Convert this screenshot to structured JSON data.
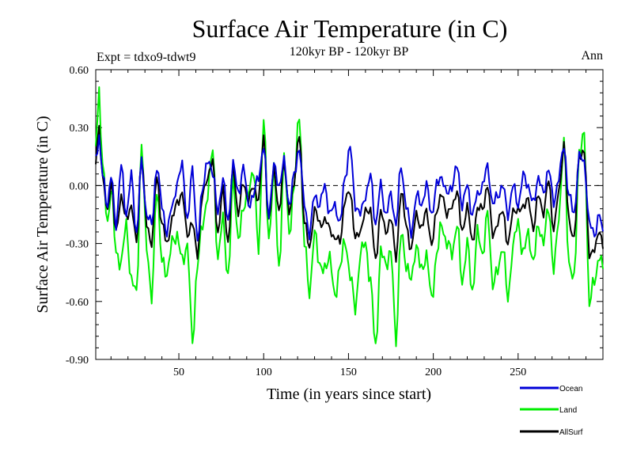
{
  "chart_data": {
    "type": "line",
    "title": "Surface Air Temperature (in C)",
    "subtitle": "120kyr BP - 120kyr BP",
    "experiment": "Expt = tdxo9-tdwt9",
    "season": "Ann",
    "xlabel": "Time (in years since start)",
    "ylabel": "Surface Air Temperature (in C)",
    "xlim": [
      1,
      300
    ],
    "ylim": [
      -0.9,
      0.6
    ],
    "xticks": [
      50,
      100,
      150,
      200,
      250
    ],
    "xtick_labels": [
      "50",
      "100",
      "150",
      "200",
      "250"
    ],
    "yticks": [
      -0.9,
      -0.6,
      -0.3,
      0.0,
      0.3,
      0.6
    ],
    "ytick_labels": [
      "-0.90",
      "-0.60",
      "-0.30",
      "0.00",
      "0.30",
      "0.60"
    ],
    "zero_line": true,
    "legend_position": "bottom-right",
    "anchor_points": {
      "x": [
        1,
        3,
        5,
        8,
        10,
        13,
        16,
        19,
        22,
        25,
        28,
        31,
        34,
        37,
        40,
        43,
        46,
        49,
        52,
        55,
        58,
        61,
        64,
        67,
        70,
        73,
        76,
        79,
        82,
        85,
        88,
        91,
        94,
        97,
        100,
        103,
        106,
        109,
        112,
        115,
        118,
        121,
        124,
        127,
        130,
        133,
        136,
        139,
        142,
        145,
        148,
        151,
        154,
        157,
        160,
        163,
        166,
        169,
        172,
        175,
        178,
        181,
        184,
        187,
        190,
        193,
        196,
        199,
        202,
        205,
        208,
        211,
        214,
        217,
        220,
        223,
        226,
        229,
        232,
        235,
        238,
        241,
        244,
        247,
        250,
        253,
        256,
        259,
        262,
        265,
        268,
        271,
        274,
        277,
        280,
        283,
        286,
        289,
        292,
        295,
        298,
        300
      ],
      "land": [
        0.2,
        0.5,
        0.1,
        -0.2,
        0.0,
        -0.35,
        -0.4,
        -0.2,
        -0.5,
        -0.55,
        0.2,
        -0.3,
        -0.6,
        0.0,
        -0.4,
        -0.45,
        -0.3,
        -0.25,
        -0.4,
        -0.3,
        -0.82,
        -0.4,
        -0.2,
        -0.05,
        0.2,
        -0.4,
        -0.15,
        -0.5,
        0.05,
        -0.3,
        -0.1,
        -0.05,
        0.1,
        -0.35,
        0.36,
        -0.3,
        0.1,
        -0.45,
        0.15,
        -0.25,
        0.0,
        0.38,
        -0.3,
        -0.55,
        -0.25,
        -0.4,
        -0.45,
        -0.35,
        -0.6,
        -0.4,
        -0.3,
        -0.45,
        -0.65,
        -0.35,
        -0.3,
        -0.5,
        -0.84,
        -0.35,
        -0.4,
        -0.35,
        -0.79,
        -0.25,
        -0.4,
        -0.5,
        -0.3,
        -0.45,
        -0.35,
        -0.6,
        -0.35,
        -0.2,
        -0.3,
        -0.35,
        -0.2,
        -0.5,
        -0.3,
        -0.55,
        -0.25,
        -0.35,
        -0.15,
        -0.5,
        -0.45,
        -0.3,
        -0.6,
        -0.3,
        -0.2,
        -0.35,
        -0.25,
        -0.4,
        -0.2,
        -0.3,
        -0.1,
        -0.45,
        -0.15,
        0.22,
        -0.4,
        -0.5,
        0.18,
        0.25,
        -0.6,
        -0.5,
        -0.35,
        -0.45
      ],
      "ocean": [
        0.15,
        0.25,
        0.05,
        -0.1,
        0.05,
        -0.2,
        0.1,
        -0.15,
        0.05,
        -0.25,
        0.12,
        -0.15,
        -0.2,
        0.1,
        -0.1,
        -0.25,
        -0.1,
        0.0,
        0.12,
        -0.2,
        0.1,
        -0.3,
        0.0,
        0.12,
        0.08,
        -0.15,
        0.05,
        -0.2,
        0.12,
        -0.05,
        0.1,
        -0.1,
        -0.05,
        0.05,
        0.2,
        -0.15,
        0.1,
        0.0,
        0.12,
        -0.1,
        0.05,
        0.2,
        -0.1,
        -0.25,
        -0.05,
        -0.1,
        0.0,
        -0.15,
        -0.1,
        -0.2,
        0.05,
        0.2,
        -0.1,
        -0.15,
        -0.05,
        0.05,
        -0.2,
        0.0,
        -0.15,
        -0.05,
        -0.2,
        0.1,
        -0.1,
        -0.25,
        -0.05,
        -0.1,
        0.0,
        -0.15,
        0.0,
        0.05,
        -0.05,
        0.0,
        0.1,
        -0.1,
        0.0,
        -0.15,
        -0.05,
        0.0,
        0.1,
        -0.1,
        -0.05,
        0.0,
        -0.15,
        0.0,
        -0.1,
        0.05,
        0.0,
        -0.1,
        0.05,
        -0.05,
        0.1,
        -0.1,
        0.05,
        0.2,
        -0.05,
        -0.15,
        0.15,
        0.12,
        -0.2,
        -0.25,
        -0.15,
        -0.25
      ],
      "allsurf": [
        0.12,
        0.3,
        0.05,
        -0.15,
        0.03,
        -0.25,
        -0.05,
        -0.18,
        -0.1,
        -0.3,
        0.15,
        -0.2,
        -0.3,
        0.05,
        -0.2,
        -0.3,
        -0.18,
        -0.08,
        -0.05,
        -0.25,
        -0.2,
        -0.35,
        -0.05,
        0.05,
        0.12,
        -0.25,
        -0.02,
        -0.3,
        0.1,
        -0.15,
        0.02,
        -0.08,
        0.0,
        -0.08,
        0.26,
        -0.2,
        0.1,
        -0.15,
        0.13,
        -0.15,
        0.03,
        0.26,
        -0.18,
        -0.33,
        -0.12,
        -0.2,
        -0.18,
        -0.22,
        -0.28,
        -0.28,
        -0.08,
        -0.02,
        -0.28,
        -0.23,
        -0.14,
        -0.12,
        -0.4,
        -0.12,
        -0.25,
        -0.16,
        -0.38,
        -0.03,
        -0.2,
        -0.34,
        -0.14,
        -0.23,
        -0.12,
        -0.32,
        -0.12,
        -0.05,
        -0.14,
        -0.12,
        -0.02,
        -0.25,
        -0.1,
        -0.3,
        -0.12,
        -0.12,
        0.0,
        -0.25,
        -0.2,
        -0.12,
        -0.32,
        -0.12,
        -0.14,
        -0.1,
        -0.08,
        -0.22,
        -0.05,
        -0.14,
        0.03,
        -0.23,
        -0.03,
        0.21,
        -0.18,
        -0.28,
        0.16,
        0.17,
        -0.35,
        -0.34,
        -0.22,
        -0.32
      ]
    },
    "series": [
      {
        "name": "Ocean",
        "color": "#0000d8"
      },
      {
        "name": "Land",
        "color": "#00ee00"
      },
      {
        "name": "AllSurf",
        "color": "#000000"
      }
    ]
  }
}
